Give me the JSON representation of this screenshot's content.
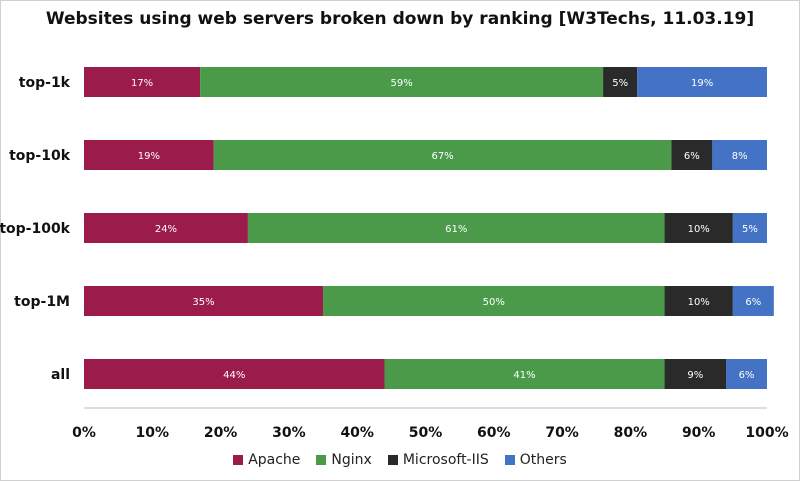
{
  "chart_data": {
    "type": "bar",
    "orientation": "horizontal",
    "stacked": true,
    "title": "Websites using web servers broken down by ranking [W3Techs, 11.03.19]",
    "categories": [
      "top-1k",
      "top-10k",
      "top-100k",
      "top-1M",
      "all"
    ],
    "series": [
      {
        "name": "Apache",
        "color": "#9b1b4a",
        "values": [
          17,
          19,
          24,
          35,
          44
        ],
        "labels": [
          "17%",
          "19%",
          "24%",
          "35%",
          "44%"
        ]
      },
      {
        "name": "Nginx",
        "color": "#4a9a4a",
        "values": [
          59,
          67,
          61,
          50,
          41
        ],
        "labels": [
          "59%",
          "67%",
          "61%",
          "50%",
          "41%"
        ]
      },
      {
        "name": "Microsoft-IIS",
        "color": "#2a2a2a",
        "values": [
          5,
          6,
          10,
          10,
          9
        ],
        "labels": [
          "5%",
          "6%",
          "10%",
          "10%",
          "9%"
        ]
      },
      {
        "name": "Others",
        "color": "#4472c4",
        "values": [
          19,
          8,
          5,
          6,
          6
        ],
        "labels": [
          "19%",
          "8%",
          "5%",
          "6%",
          "6%"
        ]
      }
    ],
    "xlim": [
      0,
      100
    ],
    "xticks": [
      "0%",
      "10%",
      "20%",
      "30%",
      "40%",
      "50%",
      "60%",
      "70%",
      "80%",
      "90%",
      "100%"
    ],
    "grid": false,
    "legend_position": "bottom"
  }
}
